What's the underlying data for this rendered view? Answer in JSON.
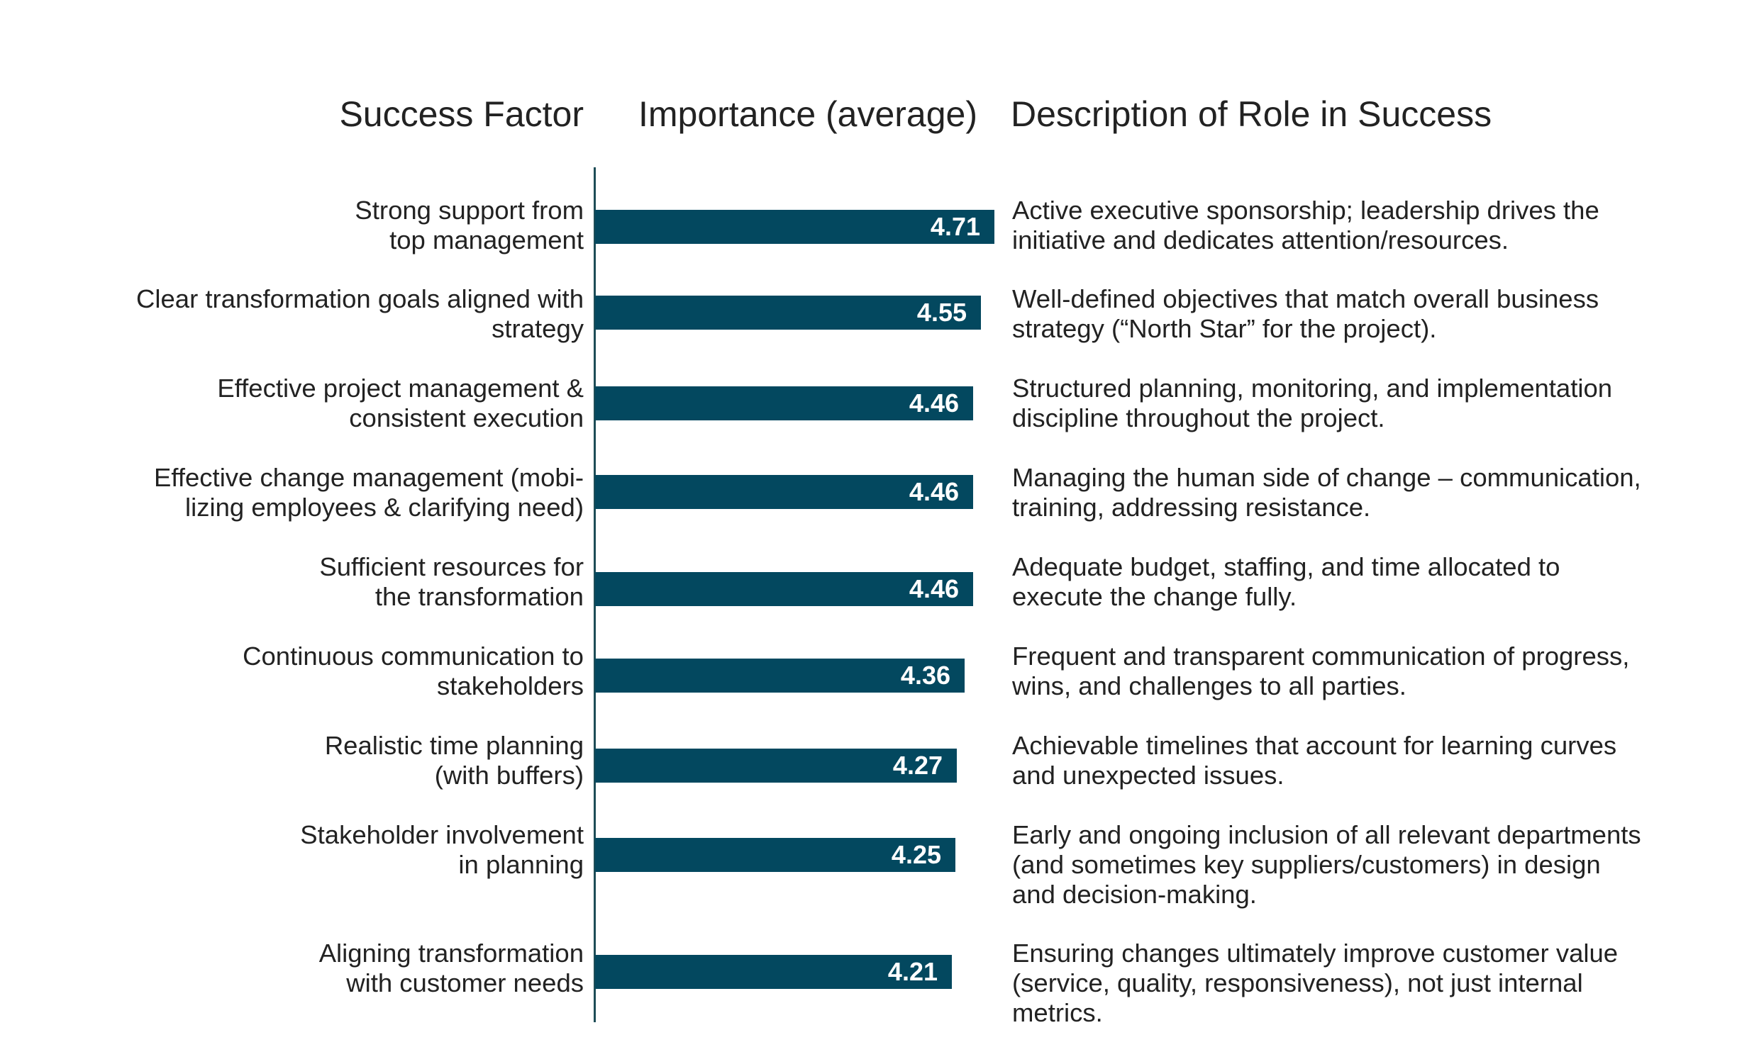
{
  "chart_data": {
    "type": "bar",
    "orientation": "horizontal",
    "headers": {
      "factor": "Success Factor",
      "importance": "Importance (average)",
      "description": "Description of Role in Success"
    },
    "xlim": [
      0,
      4.71
    ],
    "rows": [
      {
        "factor": "Strong support from\ntop management",
        "value": 4.71,
        "value_label": "4.71",
        "description": "Active executive sponsorship; leadership drives the\ninitiative and dedicates attention/resources."
      },
      {
        "factor": "Clear transformation goals aligned with\nstrategy",
        "value": 4.55,
        "value_label": "4.55",
        "description": "Well-defined objectives that match overall business\nstrategy (“North Star” for the project)."
      },
      {
        "factor": "Effective project management &\nconsistent execution",
        "value": 4.46,
        "value_label": "4.46",
        "description": "Structured planning, monitoring, and implementation\ndiscipline throughout the project."
      },
      {
        "factor": "Effective change management (mobi-\nlizing employees & clarifying need)",
        "value": 4.46,
        "value_label": "4.46",
        "description": "Managing the human side of change – communication,\ntraining, addressing resistance."
      },
      {
        "factor": "Sufficient resources for\nthe transformation",
        "value": 4.46,
        "value_label": "4.46",
        "description": "Adequate budget, staffing, and time allocated to\nexecute the change fully."
      },
      {
        "factor": "Continuous communication to\nstakeholders",
        "value": 4.36,
        "value_label": "4.36",
        "description": "Frequent and transparent communication of progress,\nwins, and challenges to all parties."
      },
      {
        "factor": "Realistic time planning\n(with buffers)",
        "value": 4.27,
        "value_label": "4.27",
        "description": "Achievable timelines that account for learning curves\nand unexpected issues."
      },
      {
        "factor": "Stakeholder involvement\nin planning",
        "value": 4.25,
        "value_label": "4.25",
        "description": "Early and ongoing inclusion of all relevant departments\n(and sometimes key suppliers/customers) in design\nand decision-making."
      },
      {
        "factor": "Aligning transformation\nwith customer needs",
        "value": 4.21,
        "value_label": "4.21",
        "description": "Ensuring changes ultimately improve customer value\n(service, quality, responsiveness), not just internal\nmetrics."
      }
    ],
    "colors": {
      "bar": "#03485f",
      "axis": "#1e4d57",
      "value_text": "#ffffff"
    }
  }
}
